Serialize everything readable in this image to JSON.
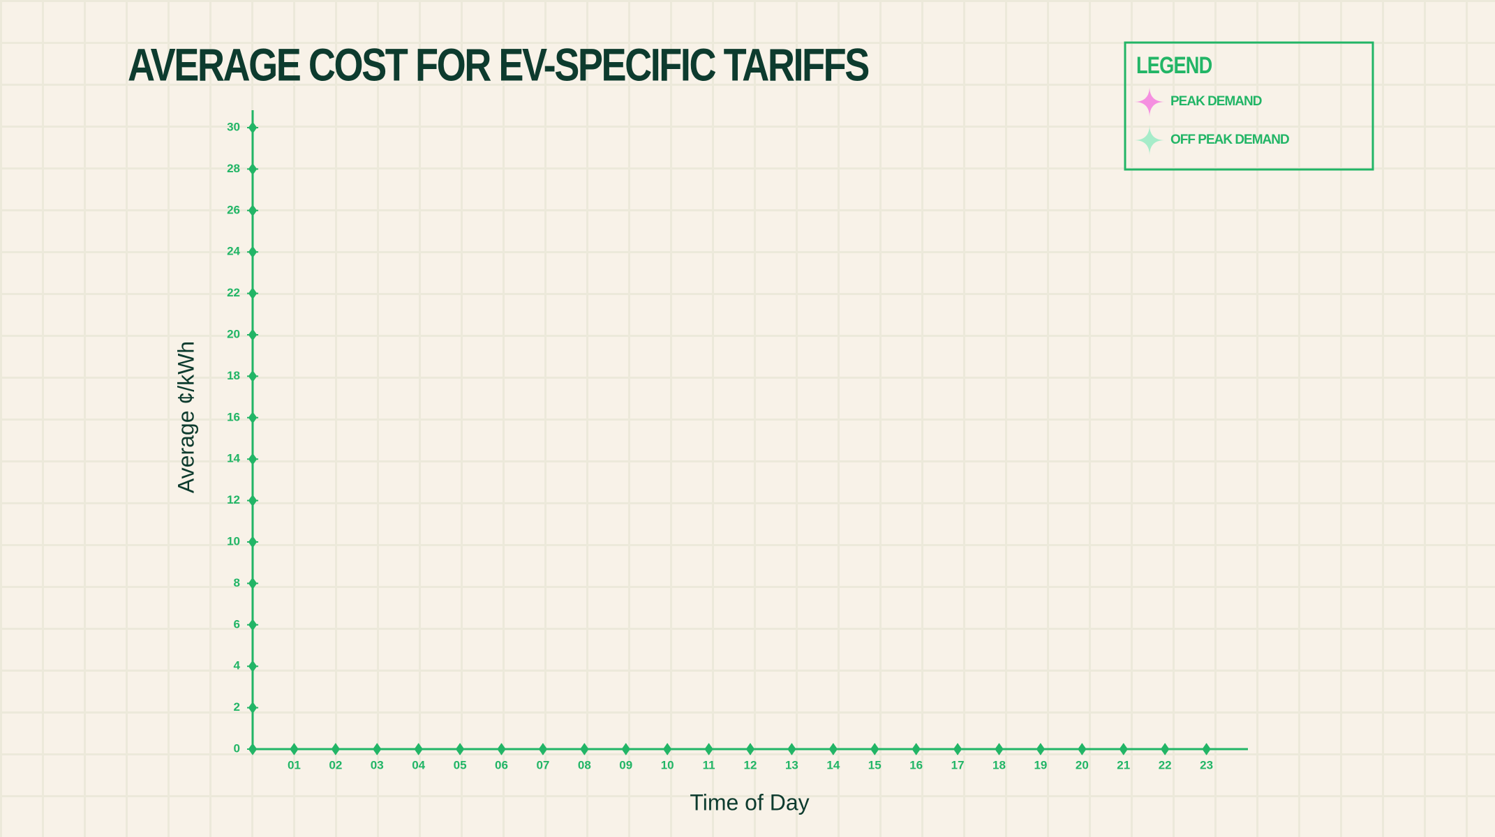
{
  "chart_data": {
    "type": "scatter",
    "title": "AVERAGE COST FOR EV-SPECIFIC TARIFFS",
    "x_label": "Time of Day",
    "y_label": "Average ¢/kWh",
    "legend_title": "LEGEND",
    "legend_position": "upper right",
    "axis_color": "#22b566",
    "x": [
      1,
      2,
      3,
      4,
      5,
      6,
      7,
      8,
      9,
      10,
      11,
      12,
      13,
      14,
      15,
      16,
      17,
      18,
      19,
      20,
      21,
      22,
      23
    ],
    "series": [
      {
        "name": "PEAK DEMAND",
        "color": "#f58fe0",
        "values": [
          null,
          null,
          null,
          null,
          null,
          null,
          null,
          null,
          null,
          null,
          null,
          null,
          null,
          null,
          null,
          null,
          null,
          null,
          null,
          null,
          null,
          null,
          null
        ]
      },
      {
        "name": "OFF PEAK DEMAND",
        "color": "#a6ecc9",
        "values": [
          null,
          null,
          null,
          null,
          null,
          null,
          null,
          null,
          null,
          null,
          null,
          null,
          null,
          null,
          null,
          null,
          null,
          null,
          null,
          null,
          null,
          null,
          null
        ]
      }
    ],
    "xlim": [
      0,
      24
    ],
    "xticks": [
      {
        "value": 1,
        "label": "01"
      },
      {
        "value": 2,
        "label": "02"
      },
      {
        "value": 3,
        "label": "03"
      },
      {
        "value": 4,
        "label": "04"
      },
      {
        "value": 5,
        "label": "05"
      },
      {
        "value": 6,
        "label": "06"
      },
      {
        "value": 7,
        "label": "07"
      },
      {
        "value": 8,
        "label": "08"
      },
      {
        "value": 9,
        "label": "09"
      },
      10,
      11,
      12,
      13,
      14,
      15,
      16,
      17,
      18,
      19,
      20,
      21,
      22,
      23
    ],
    "ylim": [
      0,
      30
    ],
    "yticks": [
      0,
      2,
      4,
      6,
      8,
      10,
      12,
      14,
      16,
      18,
      20,
      22,
      24,
      26,
      28,
      30
    ]
  }
}
